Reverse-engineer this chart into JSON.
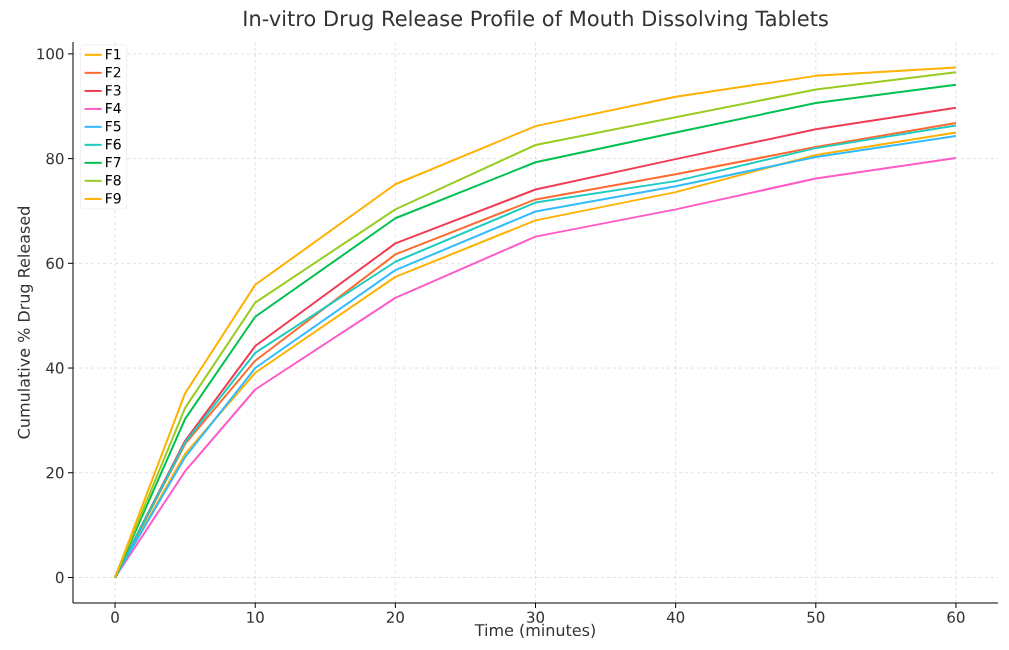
{
  "chart_data": {
    "type": "line",
    "title": "In-vitro Drug Release Profile of Mouth Dissolving Tablets",
    "xlabel": "Time (minutes)",
    "ylabel": "Cumulative % Drug Released",
    "x": [
      0,
      5,
      10,
      20,
      30,
      40,
      50,
      60
    ],
    "series": [
      {
        "name": "F1",
        "color": "#ffb000",
        "values": [
          0,
          23.6,
          39.1,
          57.4,
          68.2,
          73.6,
          80.7,
          85.0
        ]
      },
      {
        "name": "F2",
        "color": "#ff6a30",
        "values": [
          0,
          25.5,
          41.4,
          61.7,
          72.2,
          77.0,
          82.2,
          86.8
        ]
      },
      {
        "name": "F3",
        "color": "#f03c55",
        "values": [
          0,
          26.1,
          44.2,
          63.8,
          74.1,
          79.9,
          85.6,
          89.7
        ]
      },
      {
        "name": "F4",
        "color": "#ff5ac8",
        "values": [
          0,
          20.3,
          35.9,
          53.4,
          65.1,
          70.3,
          76.2,
          80.1
        ]
      },
      {
        "name": "F5",
        "color": "#33bbff",
        "values": [
          0,
          23.0,
          40.0,
          58.7,
          69.9,
          74.7,
          80.3,
          84.3
        ]
      },
      {
        "name": "F6",
        "color": "#1ecbc0",
        "values": [
          0,
          25.8,
          42.9,
          60.3,
          71.6,
          75.7,
          82.0,
          86.3
        ]
      },
      {
        "name": "F7",
        "color": "#00c050",
        "values": [
          0,
          30.3,
          49.8,
          68.6,
          79.3,
          85.0,
          90.6,
          94.1
        ]
      },
      {
        "name": "F8",
        "color": "#99cc22",
        "values": [
          0,
          32.4,
          52.5,
          70.3,
          82.6,
          87.9,
          93.2,
          96.5
        ]
      },
      {
        "name": "F9",
        "color": "#ffb000",
        "values": [
          0,
          35.2,
          55.9,
          75.1,
          86.2,
          91.8,
          95.8,
          97.4
        ]
      }
    ],
    "xlim": [
      -3,
      63
    ],
    "ylim": [
      -4.87,
      102.27
    ],
    "xticks": [
      0,
      10,
      20,
      30,
      40,
      50,
      60
    ],
    "yticks": [
      0,
      20,
      40,
      60,
      80,
      100
    ],
    "grid": true,
    "legend": "top left",
    "marker": "none",
    "line_style": "solid"
  }
}
